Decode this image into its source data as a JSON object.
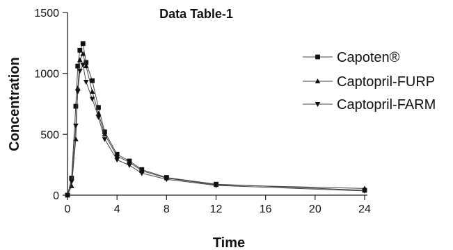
{
  "chart_data": {
    "type": "line",
    "title": "Data Table-1",
    "xlabel": "Time",
    "ylabel": "Concentration",
    "xlim": [
      0,
      24
    ],
    "ylim": [
      0,
      1500
    ],
    "xticks": [
      0,
      4,
      8,
      12,
      16,
      20,
      24
    ],
    "yticks": [
      0,
      500,
      1000,
      1500
    ],
    "xtick_labels": [
      "0",
      "4",
      "8",
      "12",
      "16",
      "20",
      "24"
    ],
    "ytick_labels": [
      "0",
      "500",
      "1000",
      "1500"
    ],
    "legend_position": "top-right",
    "series": [
      {
        "name": "Capoten®",
        "marker": "square",
        "x": [
          0,
          0.33,
          0.67,
          0.83,
          1,
          1.25,
          1.5,
          2,
          2.5,
          3,
          4,
          5,
          6,
          8,
          12,
          24
        ],
        "y": [
          0,
          140,
          730,
          1060,
          1190,
          1245,
          1090,
          940,
          720,
          520,
          335,
          280,
          210,
          145,
          90,
          40
        ]
      },
      {
        "name": "Captopril-FURP",
        "marker": "triangle-up",
        "x": [
          0,
          0.33,
          0.67,
          0.83,
          1,
          1.25,
          1.5,
          2,
          2.5,
          3,
          4,
          5,
          6,
          8,
          12,
          24
        ],
        "y": [
          0,
          75,
          460,
          880,
          1110,
          1160,
          1060,
          850,
          670,
          500,
          320,
          270,
          200,
          140,
          85,
          55
        ]
      },
      {
        "name": "Captopril-FARM",
        "marker": "triangle-down",
        "x": [
          0,
          0.33,
          0.67,
          0.83,
          1,
          1.25,
          1.5,
          2,
          2.5,
          3,
          4,
          5,
          6,
          8,
          12,
          24
        ],
        "y": [
          0,
          110,
          570,
          850,
          1020,
          1070,
          930,
          790,
          640,
          460,
          290,
          245,
          180,
          130,
          80,
          35
        ]
      }
    ]
  }
}
